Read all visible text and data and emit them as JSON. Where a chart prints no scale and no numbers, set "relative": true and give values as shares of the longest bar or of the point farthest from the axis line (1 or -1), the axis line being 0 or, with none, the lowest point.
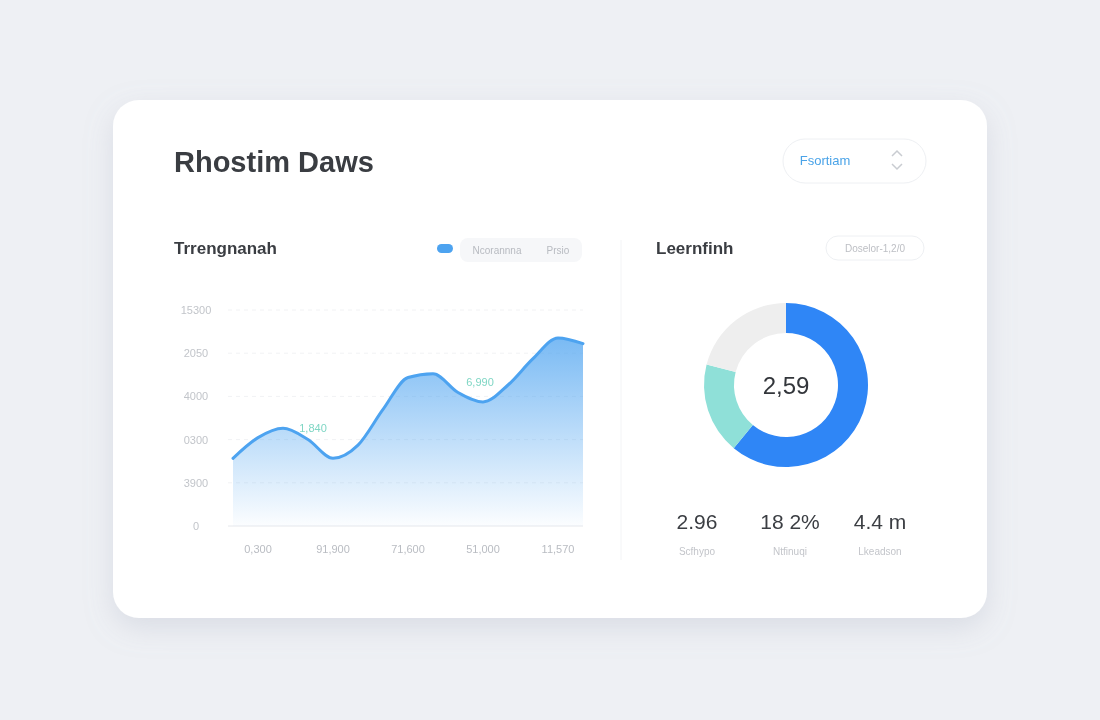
{
  "chart_data": [
    {
      "type": "other",
      "title": "Rhostim Daws",
      "annotations": [
        "Fsortiam"
      ]
    },
    {
      "type": "area",
      "title": "Trrengnanah",
      "relative": true,
      "categories": [
        null,
        "0,300",
        null,
        null,
        "91,900",
        null,
        null,
        "71,600",
        null,
        null,
        "51,000",
        null,
        null,
        "11,570",
        null
      ],
      "series": [
        {
          "name": "Ncorannna",
          "color": "#4da3f0",
          "values": [
            0.36,
            0.47,
            0.52,
            0.46,
            0.36,
            0.43,
            0.62,
            0.79,
            0.81,
            0.71,
            0.66,
            0.75,
            0.89,
            1,
            0.97
          ]
        }
      ],
      "grid": "y",
      "legend": "top right",
      "annotations": [
        "Prsio",
        "1,840",
        "6,990",
        "15300",
        "2050",
        "4000",
        "0300",
        "3900",
        "0"
      ]
    },
    {
      "type": "donut",
      "title": "Leernfinh",
      "categories": [
        null,
        null,
        null
      ],
      "values": [
        61,
        18,
        21
      ],
      "colors": [
        "#2f86f6",
        "#8fe0d8",
        "#eeeeee"
      ],
      "annotations": [
        "2,59",
        "Doselor-1,2/0"
      ]
    },
    {
      "type": "other",
      "annotations": [
        "2.96",
        "18 2%",
        "4.4 m",
        "Scfhypo",
        "Ntfinuqi",
        "Lkeadson"
      ]
    }
  ]
}
